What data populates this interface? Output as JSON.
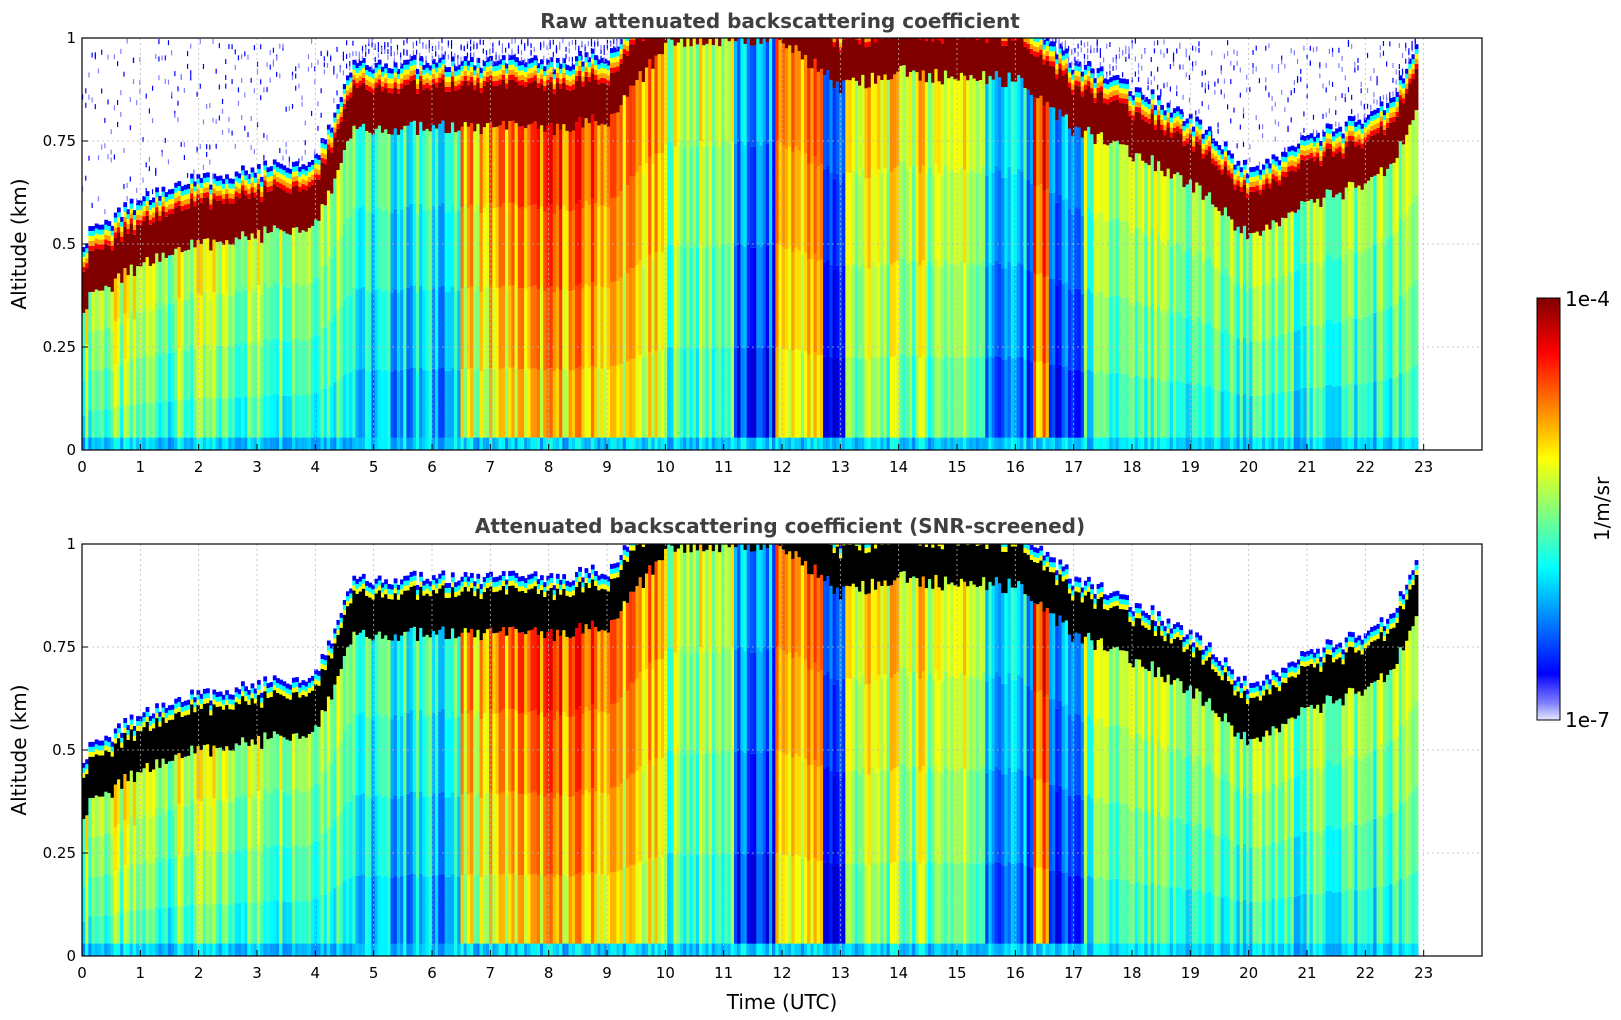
{
  "chart_data": [
    {
      "type": "heatmap",
      "title": "Raw attenuated backscattering coefficient",
      "xlabel": "",
      "ylabel": "Altitude (km)",
      "xlim": [
        0,
        24
      ],
      "ylim": [
        0,
        1
      ],
      "xticks": [
        "0",
        "1",
        "2",
        "3",
        "4",
        "5",
        "6",
        "7",
        "8",
        "9",
        "10",
        "11",
        "12",
        "13",
        "14",
        "15",
        "16",
        "17",
        "18",
        "19",
        "20",
        "21",
        "22",
        "23"
      ],
      "yticks": [
        "0",
        "0.25",
        "0.5",
        "0.75",
        "1"
      ],
      "grid": true,
      "data_end_hour": 22.9,
      "cloud_base_km": [
        [
          0,
          0.35
        ],
        [
          1,
          0.45
        ],
        [
          2,
          0.5
        ],
        [
          3,
          0.52
        ],
        [
          4,
          0.55
        ],
        [
          4.7,
          0.78
        ],
        [
          6,
          0.78
        ],
        [
          7,
          0.78
        ],
        [
          8,
          0.78
        ],
        [
          9,
          0.8
        ],
        [
          10,
          0.98
        ],
        [
          11,
          1.0
        ],
        [
          12,
          1.0
        ],
        [
          13,
          0.88
        ],
        [
          14,
          0.92
        ],
        [
          15,
          0.9
        ],
        [
          16,
          0.9
        ],
        [
          17,
          0.78
        ],
        [
          18,
          0.72
        ],
        [
          19,
          0.65
        ],
        [
          20,
          0.52
        ],
        [
          21,
          0.6
        ],
        [
          21.5,
          0.62
        ],
        [
          22,
          0.65
        ],
        [
          22.5,
          0.7
        ],
        [
          22.9,
          0.85
        ]
      ],
      "colormap": "jet",
      "colorbar": {
        "min_label": "1e-7",
        "max_label": "1e-4",
        "label": "1/m/sr",
        "scale": "log"
      }
    },
    {
      "type": "heatmap",
      "title": "Attenuated backscattering coefficient (SNR-screened)",
      "xlabel": "Time (UTC)",
      "ylabel": "Altitude (km)",
      "xlim": [
        0,
        24
      ],
      "ylim": [
        0,
        1
      ],
      "xticks": [
        "0",
        "1",
        "2",
        "3",
        "4",
        "5",
        "6",
        "7",
        "8",
        "9",
        "10",
        "11",
        "12",
        "13",
        "14",
        "15",
        "16",
        "17",
        "18",
        "19",
        "20",
        "21",
        "22",
        "23"
      ],
      "yticks": [
        "0",
        "0.25",
        "0.5",
        "0.75",
        "1"
      ],
      "grid": true,
      "saturated_color": "#000000"
    }
  ],
  "colorbar": {
    "top_label": "1e-4",
    "bottom_label": "1e-7",
    "unit_label": "1/m/sr"
  },
  "colors": {
    "jet_dark_red": "#800000",
    "jet_blue": "#0000ff",
    "jet_cyan": "#00ffff",
    "jet_yellow": "#ffff00"
  }
}
